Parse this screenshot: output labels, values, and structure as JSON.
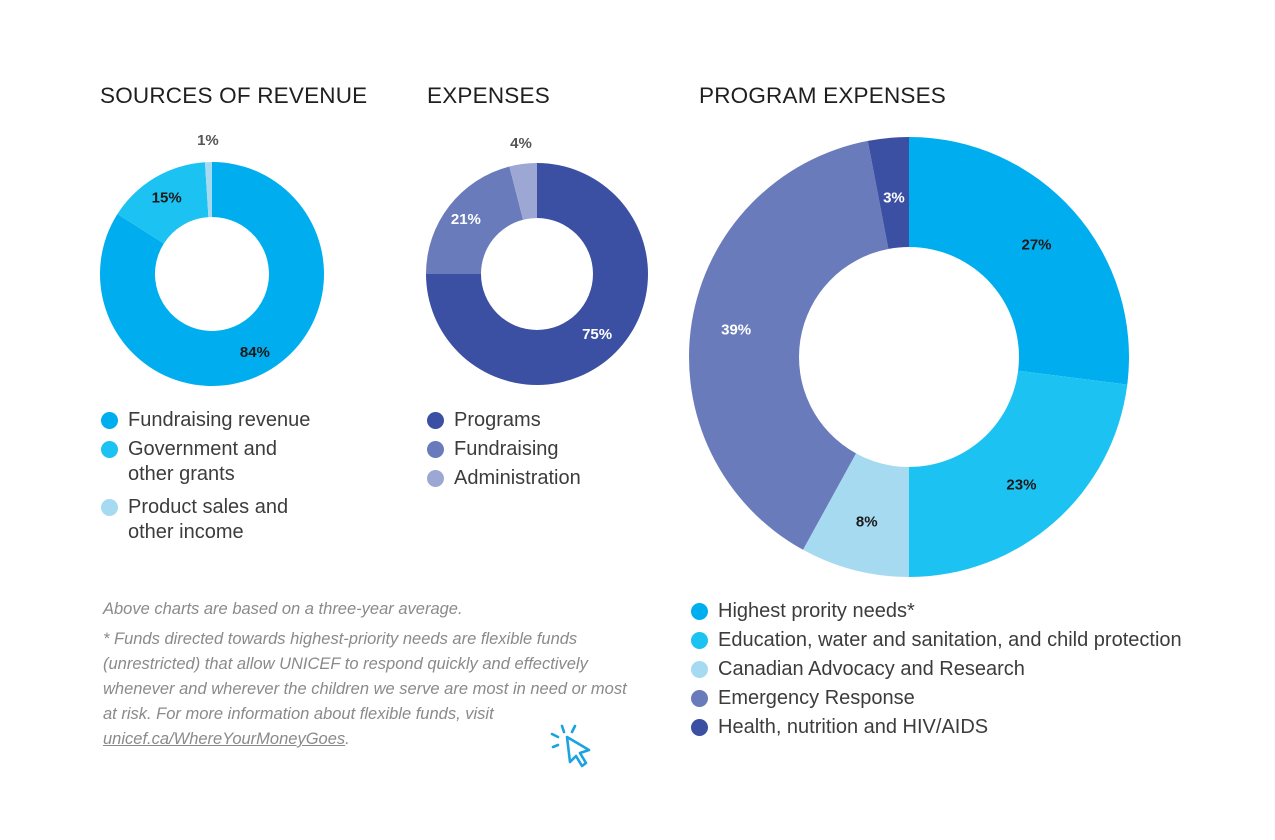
{
  "charts": [
    {
      "title": "SOURCES OF REVENUE",
      "legend": [
        "Fundraising revenue",
        "Government and other grants",
        "Product sales and other income"
      ]
    },
    {
      "title": "EXPENSES",
      "legend": [
        "Programs",
        "Fundraising",
        "Administration"
      ]
    },
    {
      "title": "PROGRAM EXPENSES",
      "legend": [
        "Highest prority needs*",
        "Education, water and sanitation, and child protection",
        "Canadian Advocacy and Research",
        "Emergency Response",
        "Health, nutrition and HIV/AIDS"
      ]
    }
  ],
  "chart_data": [
    {
      "type": "pie",
      "title": "SOURCES OF REVENUE",
      "categories": [
        "Fundraising revenue",
        "Government and other grants",
        "Product sales and other income"
      ],
      "values": [
        84,
        15,
        1
      ],
      "labels": [
        "84%",
        "15%",
        "1%"
      ],
      "colors": [
        "#00aeef",
        "#1cc3f2",
        "#a6daf1"
      ],
      "label_colors": [
        "#1a1a1a",
        "#1a1a1a",
        "#555555"
      ]
    },
    {
      "type": "pie",
      "title": "EXPENSES",
      "categories": [
        "Programs",
        "Fundraising",
        "Administration"
      ],
      "values": [
        75,
        21,
        4
      ],
      "labels": [
        "75%",
        "21%",
        "4%"
      ],
      "colors": [
        "#3b4fa3",
        "#6a7bbb",
        "#9da7d4"
      ],
      "label_colors": [
        "#ffffff",
        "#ffffff",
        "#555555"
      ]
    },
    {
      "type": "pie",
      "title": "PROGRAM EXPENSES",
      "categories": [
        "Highest prority needs*",
        "Education, water and sanitation, and child protection",
        "Canadian Advocacy and Research",
        "Emergency Response",
        "Health, nutrition and HIV/AIDS"
      ],
      "values": [
        27,
        23,
        8,
        39,
        3
      ],
      "labels": [
        "27%",
        "23%",
        "8%",
        "39%",
        "3%"
      ],
      "colors": [
        "#00aeef",
        "#1cc3f2",
        "#a6daf1",
        "#6a7bbb",
        "#3b4fa3"
      ],
      "label_colors": [
        "#1a1a1a",
        "#1a1a1a",
        "#1a1a1a",
        "#ffffff",
        "#ffffff"
      ]
    }
  ],
  "notes": {
    "line1": "Above charts are based on a three-year average.",
    "line2": "* Funds directed towards highest-priority needs are flexible funds (unrestricted) that allow UNICEF to respond quickly and effectively whenever and wherever the children we serve are most in need or most at risk. For more information about flexible funds, visit ",
    "link": "unicef.ca/WhereYourMoneyGoes",
    "end": "."
  },
  "icons": {
    "click": "cursor-click-icon"
  }
}
